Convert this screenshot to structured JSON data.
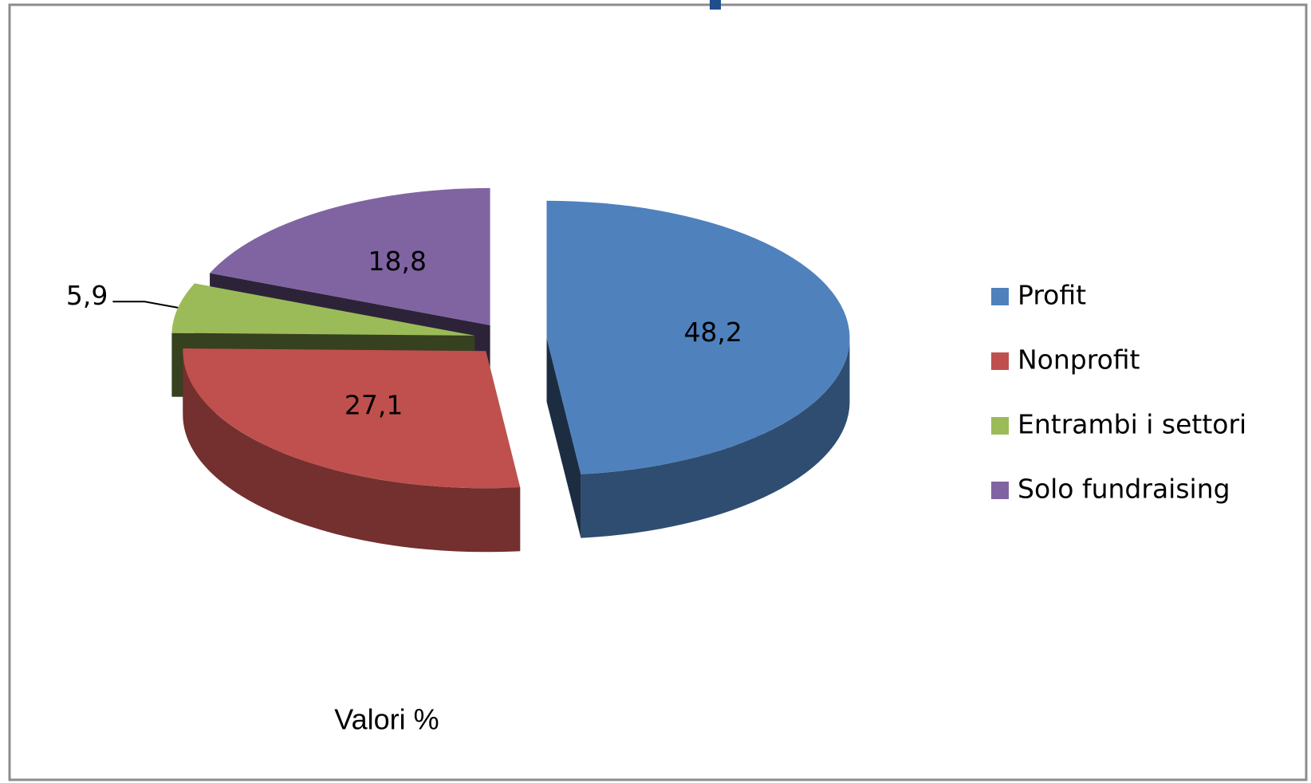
{
  "chart_data": {
    "type": "pie",
    "categories": [
      "Profit",
      "Nonprofit",
      "Entrambi i settori",
      "Solo fundraising"
    ],
    "values": [
      48.2,
      27.1,
      5.9,
      18.8
    ],
    "value_labels": [
      "48,2",
      "27,1",
      "5,9",
      "18,8"
    ],
    "colors": [
      "#4f81bd",
      "#c0504d",
      "#9bbb59",
      "#8064a2"
    ],
    "legend": "right",
    "annotation": "Valori %"
  }
}
